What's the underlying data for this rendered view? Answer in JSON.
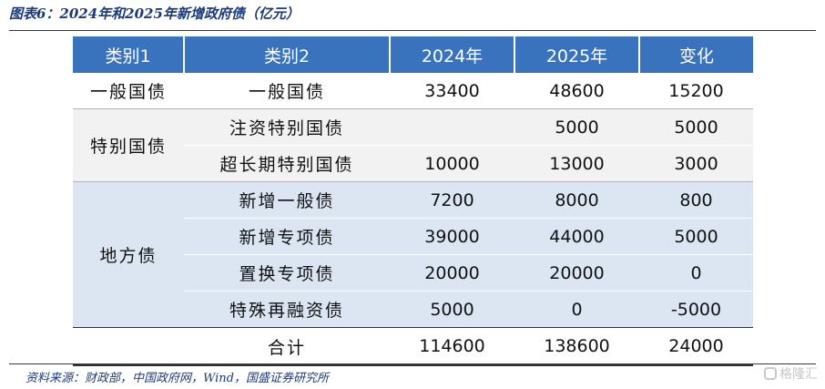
{
  "title": "图表6：2024年和2025年新增政府债（亿元）",
  "headers": [
    "类别1",
    "类别2",
    "2024年",
    "2025年",
    "变化"
  ],
  "groups": [
    {
      "category": "一般国债",
      "rows": [
        {
          "label": "",
          "v2024": "33400",
          "v2025": "48600",
          "change": "15200"
        }
      ]
    },
    {
      "category": "特别国债",
      "rows": [
        {
          "label": "注资特别国债",
          "v2024": "",
          "v2025": "5000",
          "change": "5000"
        },
        {
          "label": "超长期特别国债",
          "v2024": "10000",
          "v2025": "13000",
          "change": "3000"
        }
      ]
    },
    {
      "category": "地方债",
      "rows": [
        {
          "label": "新增一般债",
          "v2024": "7200",
          "v2025": "8000",
          "change": "800"
        },
        {
          "label": "新增专项债",
          "v2024": "39000",
          "v2025": "44000",
          "change": "5000"
        },
        {
          "label": "置换专项债",
          "v2024": "20000",
          "v2025": "20000",
          "change": "0"
        },
        {
          "label": "特殊再融资债",
          "v2024": "5000",
          "v2025": "0",
          "change": "-5000"
        }
      ]
    }
  ],
  "r0_col2": "一般国债",
  "total": {
    "label": "合计",
    "v2024": "114600",
    "v2025": "138600",
    "change": "24000"
  },
  "source": "资料来源：财政部，中国政府网，Wind，国盛证券研究所",
  "watermark": "格隆汇"
}
